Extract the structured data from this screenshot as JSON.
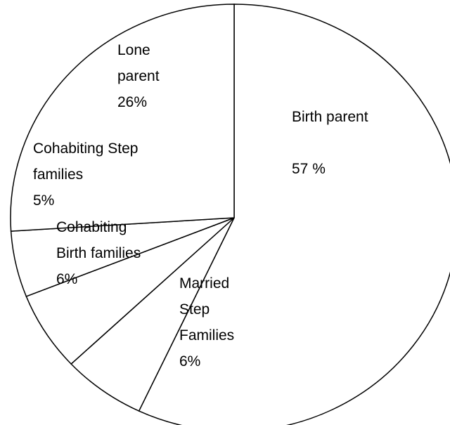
{
  "chart_data": {
    "type": "pie",
    "categories": [
      "Birth parent",
      "Married Step Families",
      "Cohabiting Birth families",
      "Cohabiting Step families",
      "Lone parent"
    ],
    "values": [
      57,
      6,
      6,
      5,
      26
    ],
    "value_labels": [
      "57 %",
      "6%",
      "6%",
      "5%",
      "26%"
    ],
    "color": "#ffffff",
    "edgecolor": "#000000"
  }
}
